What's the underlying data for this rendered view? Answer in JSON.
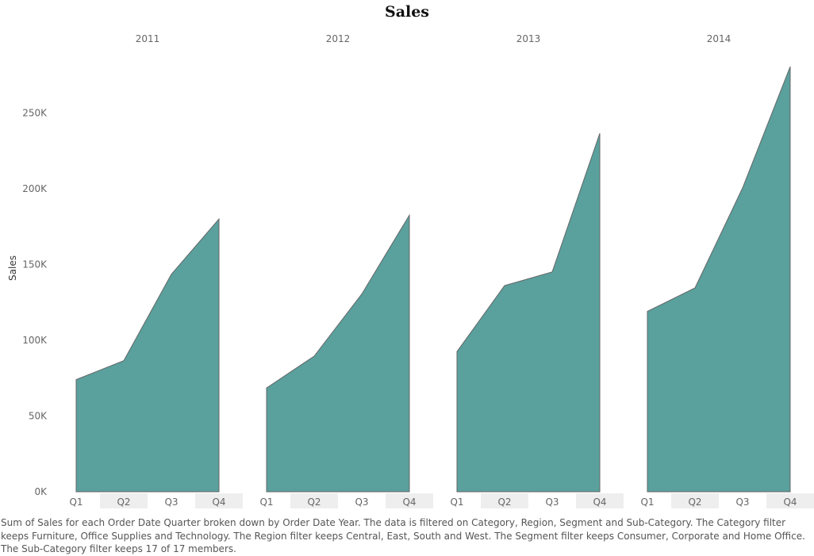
{
  "chart_data": {
    "type": "area",
    "title": "Sales",
    "ylabel": "Sales",
    "xlabel": "",
    "ylim": [
      0,
      280000
    ],
    "yticks": [
      {
        "value": 0,
        "label": "0K"
      },
      {
        "value": 50000,
        "label": "50K"
      },
      {
        "value": 100000,
        "label": "100K"
      },
      {
        "value": 150000,
        "label": "150K"
      },
      {
        "value": 200000,
        "label": "200K"
      },
      {
        "value": 250000,
        "label": "250K"
      }
    ],
    "grid": false,
    "legend": "none",
    "categories": [
      "Q1",
      "Q2",
      "Q3",
      "Q4"
    ],
    "panels": [
      {
        "year": "2011",
        "values": [
          74000,
          86500,
          143500,
          180000
        ]
      },
      {
        "year": "2012",
        "values": [
          68500,
          89500,
          130500,
          182500
        ]
      },
      {
        "year": "2013",
        "values": [
          92500,
          136000,
          145000,
          236500
        ]
      },
      {
        "year": "2014",
        "values": [
          119000,
          134500,
          200500,
          280500
        ]
      }
    ],
    "colors": {
      "fill": "#5aa09d",
      "stroke": "#666666",
      "band": "#eeeeee",
      "axis_text": "#666666"
    }
  },
  "caption": "Sum of Sales for each Order Date Quarter broken down by Order Date Year.  The data is filtered on Category, Region, Segment and Sub-Category. The Category filter keeps Furniture, Office Supplies and Technology. The Region filter keeps Central, East, South and West. The Segment filter keeps Consumer, Corporate and Home Office. The Sub-Category filter keeps 17 of 17 members."
}
